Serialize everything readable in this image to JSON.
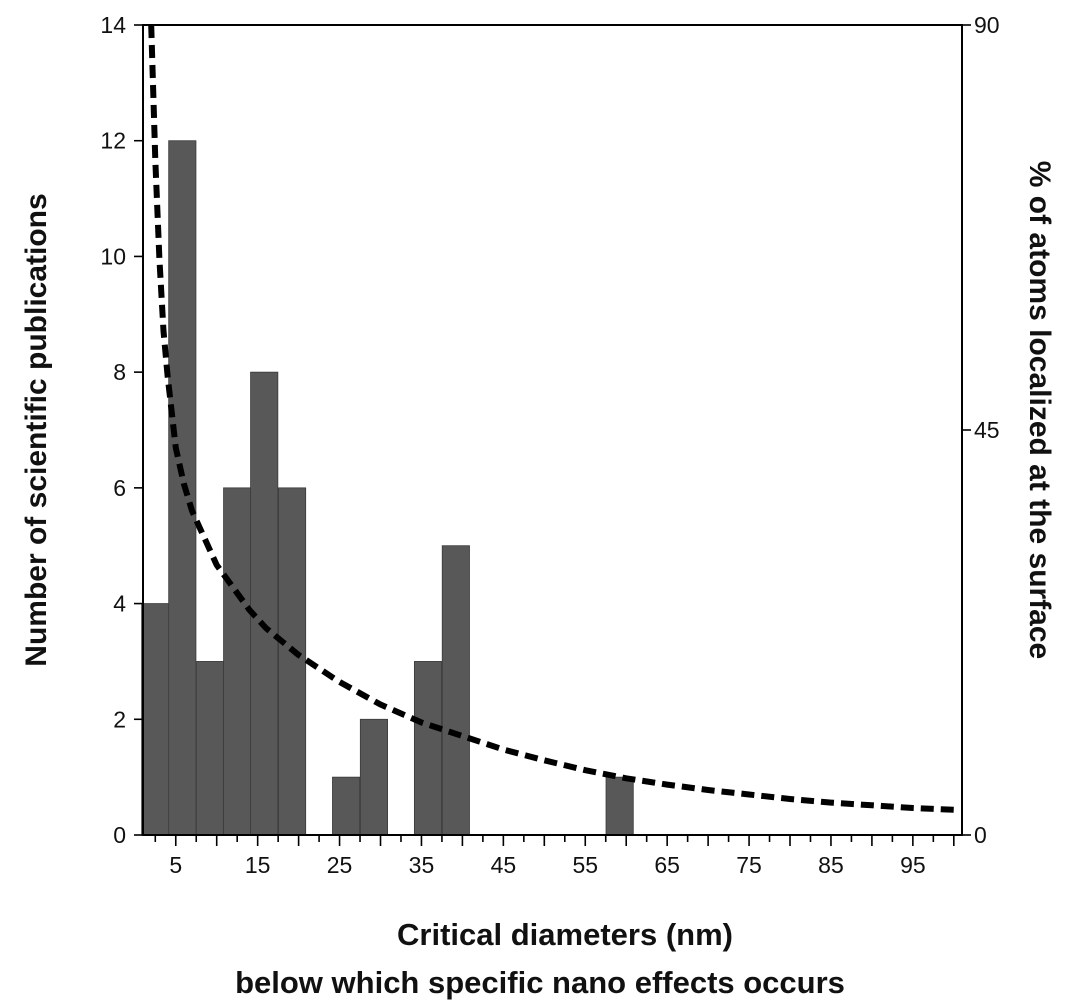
{
  "chart_data": {
    "type": "bar",
    "xlabel": "Critical diameters (nm)",
    "xlabel_line2": "below which specific nano effects occurs",
    "ylabel": "Number of scientific publications",
    "ylabel_right": "% of atoms localized at the surface",
    "xlim": [
      1,
      101
    ],
    "ylim": [
      0,
      14
    ],
    "ylim_right": [
      0,
      90
    ],
    "x_ticks_labeled": [
      5,
      15,
      25,
      35,
      45,
      55,
      65,
      75,
      85,
      95
    ],
    "y_ticks": [
      0,
      2,
      4,
      6,
      8,
      10,
      12,
      14
    ],
    "y_right_ticks": [
      0,
      45,
      90
    ],
    "bar_width": 3.33,
    "series": [
      {
        "name": "",
        "type": "bar",
        "color": "#585858",
        "x": [
          2.5,
          5.8,
          9.2,
          12.5,
          15.8,
          19.2,
          25.8,
          29.2,
          35.8,
          39.2,
          59.2
        ],
        "values": [
          4,
          12,
          3,
          6,
          8,
          6,
          1,
          2,
          3,
          5,
          1
        ]
      },
      {
        "name": "",
        "type": "line",
        "style": "dashed",
        "axis": "right",
        "color": "#000000",
        "x": [
          2,
          2.5,
          3,
          3.5,
          4,
          4.5,
          5,
          6,
          7,
          8,
          9,
          10,
          12,
          14,
          16,
          18,
          20,
          25,
          30,
          35,
          40,
          45,
          50,
          55,
          60,
          65,
          70,
          75,
          80,
          85,
          90,
          95,
          100
        ],
        "values": [
          90,
          75,
          64,
          56,
          51,
          47,
          43,
          39,
          36,
          34,
          32,
          30,
          27.5,
          25,
          23,
          21.5,
          20,
          17,
          14.5,
          12.5,
          11,
          9.5,
          8.3,
          7.2,
          6.3,
          5.6,
          5.0,
          4.5,
          4.0,
          3.6,
          3.3,
          3.0,
          2.8
        ]
      }
    ]
  }
}
